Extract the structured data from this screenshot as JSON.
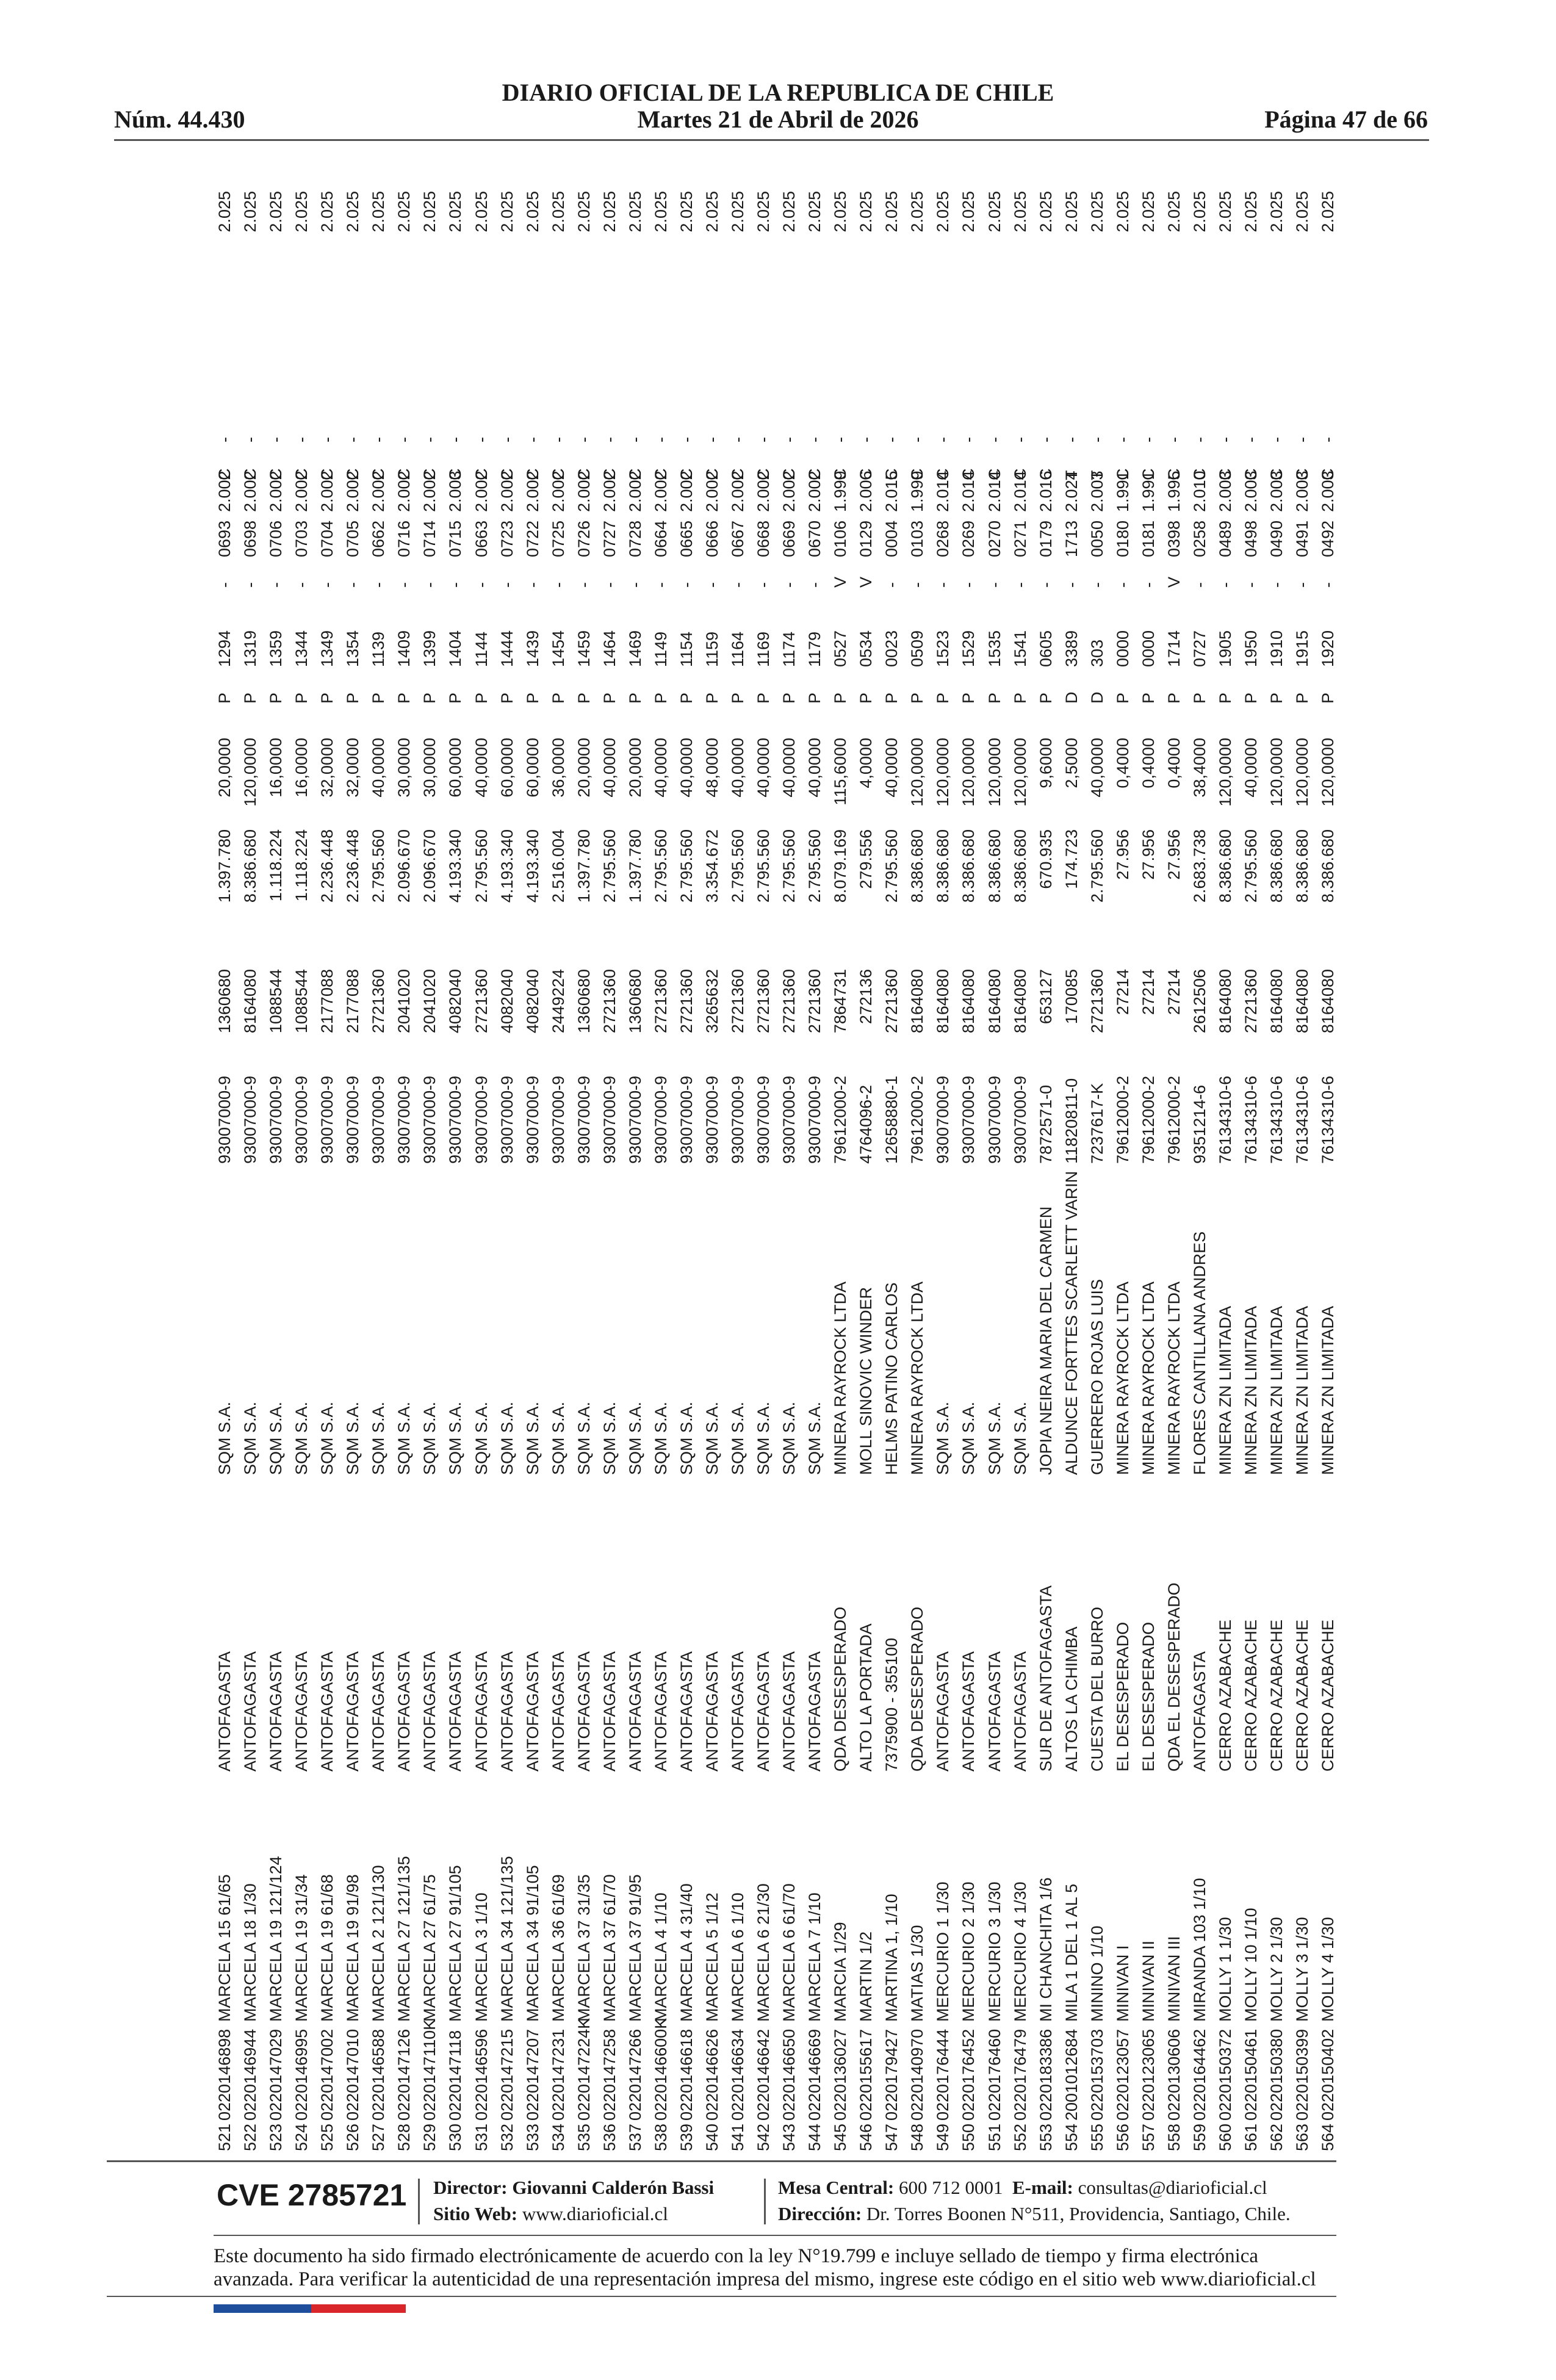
{
  "header": {
    "title": "DIARIO OFICIAL DE LA REPUBLICA DE CHILE",
    "number": "Núm. 44.430",
    "date": "Martes 21 de Abril de 2026",
    "page": "Página 47 de 66"
  },
  "table": {
    "rows": [
      [
        "521",
        "0220146898",
        "MARCELA 15 61/65",
        "ANTOFAGASTA",
        "SQM S.A.",
        "93007000-9",
        "1360680",
        "1.397.780",
        "20,0000",
        "P",
        "1294",
        "-",
        "0693",
        "2.002",
        "C",
        "-",
        "2.025"
      ],
      [
        "522",
        "0220146944",
        "MARCELA 18 1/30",
        "ANTOFAGASTA",
        "SQM S.A.",
        "93007000-9",
        "8164080",
        "8.386.680",
        "120,0000",
        "P",
        "1319",
        "-",
        "0698",
        "2.002",
        "C",
        "-",
        "2.025"
      ],
      [
        "523",
        "0220147029",
        "MARCELA 19 121/124",
        "ANTOFAGASTA",
        "SQM S.A.",
        "93007000-9",
        "1088544",
        "1.118.224",
        "16,0000",
        "P",
        "1359",
        "-",
        "0706",
        "2.002",
        "C",
        "-",
        "2.025"
      ],
      [
        "524",
        "0220146995",
        "MARCELA 19 31/34",
        "ANTOFAGASTA",
        "SQM S.A.",
        "93007000-9",
        "1088544",
        "1.118.224",
        "16,0000",
        "P",
        "1344",
        "-",
        "0703",
        "2.002",
        "C",
        "-",
        "2.025"
      ],
      [
        "525",
        "0220147002",
        "MARCELA 19 61/68",
        "ANTOFAGASTA",
        "SQM S.A.",
        "93007000-9",
        "2177088",
        "2.236.448",
        "32,0000",
        "P",
        "1349",
        "-",
        "0704",
        "2.002",
        "C",
        "-",
        "2.025"
      ],
      [
        "526",
        "0220147010",
        "MARCELA 19 91/98",
        "ANTOFAGASTA",
        "SQM S.A.",
        "93007000-9",
        "2177088",
        "2.236.448",
        "32,0000",
        "P",
        "1354",
        "-",
        "0705",
        "2.002",
        "C",
        "-",
        "2.025"
      ],
      [
        "527",
        "0220146588",
        "MARCELA 2 121/130",
        "ANTOFAGASTA",
        "SQM S.A.",
        "93007000-9",
        "2721360",
        "2.795.560",
        "40,0000",
        "P",
        "1139",
        "-",
        "0662",
        "2.002",
        "C",
        "-",
        "2.025"
      ],
      [
        "528",
        "0220147126",
        "MARCELA 27 121/135",
        "ANTOFAGASTA",
        "SQM S.A.",
        "93007000-9",
        "2041020",
        "2.096.670",
        "30,0000",
        "P",
        "1409",
        "-",
        "0716",
        "2.002",
        "C",
        "-",
        "2.025"
      ],
      [
        "529",
        "0220147110K",
        "MARCELA 27 61/75",
        "ANTOFAGASTA",
        "SQM S.A.",
        "93007000-9",
        "2041020",
        "2.096.670",
        "30,0000",
        "P",
        "1399",
        "-",
        "0714",
        "2.002",
        "C",
        "-",
        "2.025"
      ],
      [
        "530",
        "0220147118",
        "MARCELA 27 91/105",
        "ANTOFAGASTA",
        "SQM S.A.",
        "93007000-9",
        "4082040",
        "4.193.340",
        "60,0000",
        "P",
        "1404",
        "-",
        "0715",
        "2.003",
        "C",
        "-",
        "2.025"
      ],
      [
        "531",
        "0220146596",
        "MARCELA 3 1/10",
        "ANTOFAGASTA",
        "SQM S.A.",
        "93007000-9",
        "2721360",
        "2.795.560",
        "40,0000",
        "P",
        "1144",
        "-",
        "0663",
        "2.002",
        "C",
        "-",
        "2.025"
      ],
      [
        "532",
        "0220147215",
        "MARCELA 34 121/135",
        "ANTOFAGASTA",
        "SQM S.A.",
        "93007000-9",
        "4082040",
        "4.193.340",
        "60,0000",
        "P",
        "1444",
        "-",
        "0723",
        "2.002",
        "C",
        "-",
        "2.025"
      ],
      [
        "533",
        "0220147207",
        "MARCELA 34 91/105",
        "ANTOFAGASTA",
        "SQM S.A.",
        "93007000-9",
        "4082040",
        "4.193.340",
        "60,0000",
        "P",
        "1439",
        "-",
        "0722",
        "2.002",
        "C",
        "-",
        "2.025"
      ],
      [
        "534",
        "0220147231",
        "MARCELA 36 61/69",
        "ANTOFAGASTA",
        "SQM S.A.",
        "93007000-9",
        "2449224",
        "2.516.004",
        "36,0000",
        "P",
        "1454",
        "-",
        "0725",
        "2.002",
        "C",
        "-",
        "2.025"
      ],
      [
        "535",
        "0220147224K",
        "MARCELA 37 31/35",
        "ANTOFAGASTA",
        "SQM S.A.",
        "93007000-9",
        "1360680",
        "1.397.780",
        "20,0000",
        "P",
        "1459",
        "-",
        "0726",
        "2.002",
        "C",
        "-",
        "2.025"
      ],
      [
        "536",
        "0220147258",
        "MARCELA 37 61/70",
        "ANTOFAGASTA",
        "SQM S.A.",
        "93007000-9",
        "2721360",
        "2.795.560",
        "40,0000",
        "P",
        "1464",
        "-",
        "0727",
        "2.002",
        "C",
        "-",
        "2.025"
      ],
      [
        "537",
        "0220147266",
        "MARCELA 37 91/95",
        "ANTOFAGASTA",
        "SQM S.A.",
        "93007000-9",
        "1360680",
        "1.397.780",
        "20,0000",
        "P",
        "1469",
        "-",
        "0728",
        "2.002",
        "C",
        "-",
        "2.025"
      ],
      [
        "538",
        "0220146600K",
        "MARCELA 4 1/10",
        "ANTOFAGASTA",
        "SQM S.A.",
        "93007000-9",
        "2721360",
        "2.795.560",
        "40,0000",
        "P",
        "1149",
        "-",
        "0664",
        "2.002",
        "C",
        "-",
        "2.025"
      ],
      [
        "539",
        "0220146618",
        "MARCELA 4 31/40",
        "ANTOFAGASTA",
        "SQM S.A.",
        "93007000-9",
        "2721360",
        "2.795.560",
        "40,0000",
        "P",
        "1154",
        "-",
        "0665",
        "2.002",
        "C",
        "-",
        "2.025"
      ],
      [
        "540",
        "0220146626",
        "MARCELA 5 1/12",
        "ANTOFAGASTA",
        "SQM S.A.",
        "93007000-9",
        "3265632",
        "3.354.672",
        "48,0000",
        "P",
        "1159",
        "-",
        "0666",
        "2.002",
        "C",
        "-",
        "2.025"
      ],
      [
        "541",
        "0220146634",
        "MARCELA 6 1/10",
        "ANTOFAGASTA",
        "SQM S.A.",
        "93007000-9",
        "2721360",
        "2.795.560",
        "40,0000",
        "P",
        "1164",
        "-",
        "0667",
        "2.002",
        "C",
        "-",
        "2.025"
      ],
      [
        "542",
        "0220146642",
        "MARCELA 6 21/30",
        "ANTOFAGASTA",
        "SQM S.A.",
        "93007000-9",
        "2721360",
        "2.795.560",
        "40,0000",
        "P",
        "1169",
        "-",
        "0668",
        "2.002",
        "C",
        "-",
        "2.025"
      ],
      [
        "543",
        "0220146650",
        "MARCELA 6 61/70",
        "ANTOFAGASTA",
        "SQM S.A.",
        "93007000-9",
        "2721360",
        "2.795.560",
        "40,0000",
        "P",
        "1174",
        "-",
        "0669",
        "2.002",
        "C",
        "-",
        "2.025"
      ],
      [
        "544",
        "0220146669",
        "MARCELA 7 1/10",
        "ANTOFAGASTA",
        "SQM S.A.",
        "93007000-9",
        "2721360",
        "2.795.560",
        "40,0000",
        "P",
        "1179",
        "-",
        "0670",
        "2.002",
        "C",
        "-",
        "2.025"
      ],
      [
        "545",
        "0220136027",
        "MARCIA 1/29",
        "QDA DESESPERADO",
        "MINERA RAYROCK LTDA",
        "79612000-2",
        "7864731",
        "8.079.169",
        "115,6000",
        "P",
        "0527",
        "V",
        "0106",
        "1.999",
        "C",
        "-",
        "2.025"
      ],
      [
        "546",
        "0220155617",
        "MARTIN 1/2",
        "ALTO LA PORTADA",
        "MOLL SINOVIC WINDER",
        "4764096-2",
        "272136",
        "279.556",
        "4,0000",
        "P",
        "0534",
        "V",
        "0129",
        "2.006",
        "C",
        "-",
        "2.025"
      ],
      [
        "547",
        "0220179427",
        "MARTINA 1, 1/10",
        "7375900 - 355100",
        "HELMS PATINO CARLOS",
        "12658880-1",
        "2721360",
        "2.795.560",
        "40,0000",
        "P",
        "0023",
        "-",
        "0004",
        "2.015",
        "C",
        "-",
        "2.025"
      ],
      [
        "548",
        "0220140970",
        "MATIAS 1/30",
        "QDA DESESPERADO",
        "MINERA RAYROCK LTDA",
        "79612000-2",
        "8164080",
        "8.386.680",
        "120,0000",
        "P",
        "0509",
        "-",
        "0103",
        "1.999",
        "C",
        "-",
        "2.025"
      ],
      [
        "549",
        "0220176444",
        "MERCURIO 1 1/30",
        "ANTOFAGASTA",
        "SQM S.A.",
        "93007000-9",
        "8164080",
        "8.386.680",
        "120,0000",
        "P",
        "1523",
        "-",
        "0268",
        "2.014",
        "C",
        "-",
        "2.025"
      ],
      [
        "550",
        "0220176452",
        "MERCURIO 2 1/30",
        "ANTOFAGASTA",
        "SQM S.A.",
        "93007000-9",
        "8164080",
        "8.386.680",
        "120,0000",
        "P",
        "1529",
        "-",
        "0269",
        "2.014",
        "C",
        "-",
        "2.025"
      ],
      [
        "551",
        "0220176460",
        "MERCURIO 3 1/30",
        "ANTOFAGASTA",
        "SQM S.A.",
        "93007000-9",
        "8164080",
        "8.386.680",
        "120,0000",
        "P",
        "1535",
        "-",
        "0270",
        "2.014",
        "C",
        "-",
        "2.025"
      ],
      [
        "552",
        "0220176479",
        "MERCURIO 4 1/30",
        "ANTOFAGASTA",
        "SQM S.A.",
        "93007000-9",
        "8164080",
        "8.386.680",
        "120,0000",
        "P",
        "1541",
        "-",
        "0271",
        "2.014",
        "C",
        "-",
        "2.025"
      ],
      [
        "553",
        "0220183386",
        "MI CHANCHITA 1/6",
        "SUR DE ANTOFAGASTA",
        "JOPIA NEIRA MARIA DEL CARMEN",
        "7872571-0",
        "653127",
        "670.935",
        "9,6000",
        "P",
        "0605",
        "-",
        "0179",
        "2.016",
        "C",
        "-",
        "2.025"
      ],
      [
        "554",
        "2001012684",
        "MILA 1 DEL 1 AL 5",
        "ALTOS LA CHIMBA",
        "ALDUNCE FORTTES SCARLETT VARIN",
        "11820811-0",
        "170085",
        "174.723",
        "2,5000",
        "D",
        "3389",
        "-",
        "1713",
        "2.024",
        "T",
        "-",
        "2.025"
      ],
      [
        "555",
        "0220153703",
        "MININO 1/10",
        "CUESTA DEL BURRO",
        "GUERRERO ROJAS LUIS",
        "7237617-K",
        "2721360",
        "2.795.560",
        "40,0000",
        "D",
        "303",
        "-",
        "0050",
        "2.003",
        "T",
        "-",
        "2.025"
      ],
      [
        "556",
        "0220123057",
        "MINIVAN I",
        "EL DESESPERADO",
        "MINERA RAYROCK LTDA",
        "79612000-2",
        "27214",
        "27.956",
        "0,4000",
        "P",
        "0000",
        "-",
        "0180",
        "1.991",
        "C",
        "-",
        "2.025"
      ],
      [
        "557",
        "0220123065",
        "MINIVAN II",
        "EL DESESPERADO",
        "MINERA RAYROCK LTDA",
        "79612000-2",
        "27214",
        "27.956",
        "0,4000",
        "P",
        "0000",
        "-",
        "0181",
        "1.991",
        "C",
        "-",
        "2.025"
      ],
      [
        "558",
        "0220130606",
        "MINIVAN III",
        "QDA EL DESESPERADO",
        "MINERA RAYROCK LTDA",
        "79612000-2",
        "27214",
        "27.956",
        "0,4000",
        "P",
        "1714",
        "V",
        "0398",
        "1.995",
        "C",
        "-",
        "2.025"
      ],
      [
        "559",
        "0220164462",
        "MIRANDA 103 1/10",
        "ANTOFAGASTA",
        "FLORES CANTILLANA ANDRES",
        "9351214-6",
        "2612506",
        "2.683.738",
        "38,4000",
        "P",
        "0727",
        "-",
        "0258",
        "2.010",
        "C",
        "-",
        "2.025"
      ],
      [
        "560",
        "0220150372",
        "MOLLY 1 1/30",
        "CERRO AZABACHE",
        "MINERA ZN LIMITADA",
        "76134310-6",
        "8164080",
        "8.386.680",
        "120,0000",
        "P",
        "1905",
        "-",
        "0489",
        "2.003",
        "C",
        "-",
        "2.025"
      ],
      [
        "561",
        "0220150461",
        "MOLLY 10 1/10",
        "CERRO AZABACHE",
        "MINERA ZN LIMITADA",
        "76134310-6",
        "2721360",
        "2.795.560",
        "40,0000",
        "P",
        "1950",
        "-",
        "0498",
        "2.003",
        "C",
        "-",
        "2.025"
      ],
      [
        "562",
        "0220150380",
        "MOLLY 2 1/30",
        "CERRO AZABACHE",
        "MINERA ZN LIMITADA",
        "76134310-6",
        "8164080",
        "8.386.680",
        "120,0000",
        "P",
        "1910",
        "-",
        "0490",
        "2.003",
        "C",
        "-",
        "2.025"
      ],
      [
        "563",
        "0220150399",
        "MOLLY 3 1/30",
        "CERRO AZABACHE",
        "MINERA ZN LIMITADA",
        "76134310-6",
        "8164080",
        "8.386.680",
        "120,0000",
        "P",
        "1915",
        "-",
        "0491",
        "2.003",
        "C",
        "-",
        "2.025"
      ],
      [
        "564",
        "0220150402",
        "MOLLY 4 1/30",
        "CERRO AZABACHE",
        "MINERA ZN LIMITADA",
        "76134310-6",
        "8164080",
        "8.386.680",
        "120,0000",
        "P",
        "1920",
        "-",
        "0492",
        "2.003",
        "C",
        "-",
        "2.025"
      ]
    ]
  },
  "footer": {
    "cve": "CVE 2785721",
    "director_label": "Director:",
    "director": "Giovanni Calderón Bassi",
    "web_label": "Sitio Web:",
    "web": "www.diarioficial.cl",
    "phone_label": "Mesa Central:",
    "phone": "600 712 0001",
    "email_label": "E-mail:",
    "email": "consultas@diarioficial.cl",
    "address_label": "Dirección:",
    "address": "Dr. Torres Boonen N°511, Providencia, Santiago, Chile.",
    "notice": "Este documento ha sido firmado electrónicamente de acuerdo con la ley N°19.799 e incluye sellado de tiempo y firma electrónica avanzada. Para verificar la autenticidad de una representación impresa del mismo, ingrese este código en el sitio web www.diarioficial.cl"
  }
}
